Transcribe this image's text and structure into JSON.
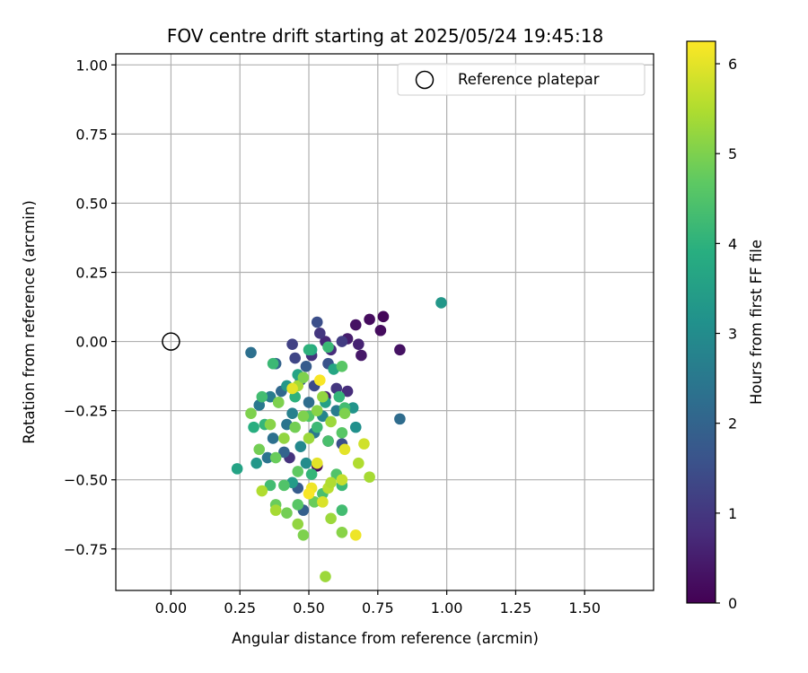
{
  "chart_data": {
    "type": "scatter",
    "title": "FOV centre drift starting at 2025/05/24 19:45:18",
    "xlabel": "Angular distance from reference (arcmin)",
    "ylabel": "Rotation from reference (arcmin)",
    "xlim": [
      -0.2,
      1.75
    ],
    "ylim": [
      -0.9,
      1.04
    ],
    "xticks": [
      "0.00",
      "0.25",
      "0.50",
      "0.75",
      "1.00",
      "1.25",
      "1.50"
    ],
    "yticks": [
      "−0.75",
      "−0.50",
      "−0.25",
      "0.00",
      "0.25",
      "0.50",
      "0.75",
      "1.00"
    ],
    "grid": true,
    "legend": {
      "placement": "top-right",
      "entries": [
        "Reference platepar"
      ]
    },
    "reference_point": {
      "x": 0.0,
      "y": 0.0
    },
    "colorbar": {
      "label": "Hours from first FF file",
      "min": 0,
      "max": 6.25,
      "ticks": [
        "0",
        "1",
        "2",
        "3",
        "4",
        "5",
        "6"
      ],
      "colormap": [
        "#440154",
        "#472d7b",
        "#3b528b",
        "#2c728e",
        "#21918c",
        "#28ae80",
        "#5ec962",
        "#addc30",
        "#fde725"
      ]
    },
    "points": [
      {
        "x": 0.77,
        "y": 0.09,
        "h": 0.1
      },
      {
        "x": 0.72,
        "y": 0.08,
        "h": 0.2
      },
      {
        "x": 0.67,
        "y": 0.06,
        "h": 0.3
      },
      {
        "x": 0.76,
        "y": 0.04,
        "h": 0.2
      },
      {
        "x": 0.69,
        "y": -0.05,
        "h": 0.4
      },
      {
        "x": 0.83,
        "y": -0.03,
        "h": 0.3
      },
      {
        "x": 0.64,
        "y": 0.01,
        "h": 0.5
      },
      {
        "x": 0.68,
        "y": -0.01,
        "h": 0.6
      },
      {
        "x": 0.56,
        "y": 0.0,
        "h": 0.7
      },
      {
        "x": 0.53,
        "y": 0.07,
        "h": 1.5
      },
      {
        "x": 0.54,
        "y": 0.03,
        "h": 1.0
      },
      {
        "x": 0.44,
        "y": -0.01,
        "h": 1.2
      },
      {
        "x": 0.51,
        "y": -0.05,
        "h": 0.9
      },
      {
        "x": 0.58,
        "y": -0.03,
        "h": 0.8
      },
      {
        "x": 0.62,
        "y": 0.0,
        "h": 1.1
      },
      {
        "x": 0.45,
        "y": -0.06,
        "h": 1.3
      },
      {
        "x": 0.57,
        "y": -0.08,
        "h": 1.6
      },
      {
        "x": 0.64,
        "y": -0.18,
        "h": 0.8
      },
      {
        "x": 0.56,
        "y": -0.2,
        "h": 0.6
      },
      {
        "x": 0.6,
        "y": -0.17,
        "h": 1.0
      },
      {
        "x": 0.52,
        "y": -0.16,
        "h": 1.4
      },
      {
        "x": 0.47,
        "y": -0.14,
        "h": 1.7
      },
      {
        "x": 0.49,
        "y": -0.09,
        "h": 1.8
      },
      {
        "x": 0.29,
        "y": -0.04,
        "h": 2.3
      },
      {
        "x": 0.38,
        "y": -0.08,
        "h": 2.0
      },
      {
        "x": 0.98,
        "y": 0.14,
        "h": 3.3
      },
      {
        "x": 0.83,
        "y": -0.28,
        "h": 2.2
      },
      {
        "x": 0.57,
        "y": -0.36,
        "h": 0.4
      },
      {
        "x": 0.53,
        "y": -0.45,
        "h": 0.2
      },
      {
        "x": 0.43,
        "y": -0.42,
        "h": 0.9
      },
      {
        "x": 0.62,
        "y": -0.37,
        "h": 1.5
      },
      {
        "x": 0.46,
        "y": -0.53,
        "h": 1.8
      },
      {
        "x": 0.48,
        "y": -0.61,
        "h": 1.9
      },
      {
        "x": 0.36,
        "y": -0.2,
        "h": 2.6
      },
      {
        "x": 0.32,
        "y": -0.23,
        "h": 2.5
      },
      {
        "x": 0.4,
        "y": -0.18,
        "h": 2.1
      },
      {
        "x": 0.42,
        "y": -0.3,
        "h": 2.4
      },
      {
        "x": 0.44,
        "y": -0.26,
        "h": 2.7
      },
      {
        "x": 0.5,
        "y": -0.22,
        "h": 2.2
      },
      {
        "x": 0.55,
        "y": -0.27,
        "h": 2.8
      },
      {
        "x": 0.6,
        "y": -0.25,
        "h": 2.6
      },
      {
        "x": 0.66,
        "y": -0.24,
        "h": 3.2
      },
      {
        "x": 0.67,
        "y": -0.31,
        "h": 3.1
      },
      {
        "x": 0.37,
        "y": -0.35,
        "h": 2.3
      },
      {
        "x": 0.35,
        "y": -0.42,
        "h": 2.4
      },
      {
        "x": 0.41,
        "y": -0.4,
        "h": 2.0
      },
      {
        "x": 0.47,
        "y": -0.38,
        "h": 2.9
      },
      {
        "x": 0.52,
        "y": -0.33,
        "h": 2.5
      },
      {
        "x": 0.49,
        "y": -0.44,
        "h": 3.0
      },
      {
        "x": 0.44,
        "y": -0.51,
        "h": 3.4
      },
      {
        "x": 0.56,
        "y": -0.22,
        "h": 3.5
      },
      {
        "x": 0.42,
        "y": -0.16,
        "h": 3.3
      },
      {
        "x": 0.46,
        "y": -0.12,
        "h": 3.6
      },
      {
        "x": 0.51,
        "y": -0.03,
        "h": 3.8
      },
      {
        "x": 0.59,
        "y": -0.1,
        "h": 3.7
      },
      {
        "x": 0.31,
        "y": -0.44,
        "h": 3.3
      },
      {
        "x": 0.24,
        "y": -0.46,
        "h": 3.6
      },
      {
        "x": 0.3,
        "y": -0.31,
        "h": 3.9
      },
      {
        "x": 0.34,
        "y": -0.3,
        "h": 4.1
      },
      {
        "x": 0.33,
        "y": -0.2,
        "h": 4.3
      },
      {
        "x": 0.37,
        "y": -0.08,
        "h": 4.2
      },
      {
        "x": 0.39,
        "y": -0.22,
        "h": 4.4
      },
      {
        "x": 0.45,
        "y": -0.2,
        "h": 4.0
      },
      {
        "x": 0.5,
        "y": -0.27,
        "h": 4.5
      },
      {
        "x": 0.53,
        "y": -0.31,
        "h": 4.2
      },
      {
        "x": 0.57,
        "y": -0.36,
        "h": 4.4
      },
      {
        "x": 0.62,
        "y": -0.33,
        "h": 4.6
      },
      {
        "x": 0.63,
        "y": -0.24,
        "h": 4.3
      },
      {
        "x": 0.61,
        "y": -0.2,
        "h": 4.1
      },
      {
        "x": 0.62,
        "y": -0.09,
        "h": 4.6
      },
      {
        "x": 0.57,
        "y": -0.02,
        "h": 4.2
      },
      {
        "x": 0.5,
        "y": -0.03,
        "h": 4.0
      },
      {
        "x": 0.36,
        "y": -0.52,
        "h": 4.3
      },
      {
        "x": 0.41,
        "y": -0.52,
        "h": 4.5
      },
      {
        "x": 0.46,
        "y": -0.47,
        "h": 4.7
      },
      {
        "x": 0.51,
        "y": -0.48,
        "h": 4.1
      },
      {
        "x": 0.55,
        "y": -0.55,
        "h": 4.4
      },
      {
        "x": 0.6,
        "y": -0.48,
        "h": 4.5
      },
      {
        "x": 0.62,
        "y": -0.52,
        "h": 4.2
      },
      {
        "x": 0.42,
        "y": -0.62,
        "h": 4.9
      },
      {
        "x": 0.38,
        "y": -0.59,
        "h": 4.8
      },
      {
        "x": 0.46,
        "y": -0.59,
        "h": 4.6
      },
      {
        "x": 0.52,
        "y": -0.58,
        "h": 4.8
      },
      {
        "x": 0.62,
        "y": -0.61,
        "h": 4.3
      },
      {
        "x": 0.29,
        "y": -0.26,
        "h": 5.0
      },
      {
        "x": 0.32,
        "y": -0.39,
        "h": 4.9
      },
      {
        "x": 0.36,
        "y": -0.3,
        "h": 5.1
      },
      {
        "x": 0.38,
        "y": -0.42,
        "h": 4.8
      },
      {
        "x": 0.41,
        "y": -0.35,
        "h": 5.2
      },
      {
        "x": 0.45,
        "y": -0.31,
        "h": 4.9
      },
      {
        "x": 0.48,
        "y": -0.27,
        "h": 5.0
      },
      {
        "x": 0.5,
        "y": -0.35,
        "h": 5.3
      },
      {
        "x": 0.53,
        "y": -0.25,
        "h": 5.1
      },
      {
        "x": 0.46,
        "y": -0.16,
        "h": 5.4
      },
      {
        "x": 0.48,
        "y": -0.13,
        "h": 5.0
      },
      {
        "x": 0.55,
        "y": -0.2,
        "h": 5.2
      },
      {
        "x": 0.58,
        "y": -0.29,
        "h": 5.3
      },
      {
        "x": 0.63,
        "y": -0.26,
        "h": 5.0
      },
      {
        "x": 0.39,
        "y": -0.22,
        "h": 5.0
      },
      {
        "x": 0.33,
        "y": -0.54,
        "h": 5.5
      },
      {
        "x": 0.38,
        "y": -0.61,
        "h": 5.4
      },
      {
        "x": 0.46,
        "y": -0.66,
        "h": 5.2
      },
      {
        "x": 0.48,
        "y": -0.7,
        "h": 5.0
      },
      {
        "x": 0.58,
        "y": -0.64,
        "h": 5.3
      },
      {
        "x": 0.62,
        "y": -0.69,
        "h": 5.1
      },
      {
        "x": 0.57,
        "y": -0.53,
        "h": 5.6
      },
      {
        "x": 0.58,
        "y": -0.51,
        "h": 5.5
      },
      {
        "x": 0.62,
        "y": -0.5,
        "h": 5.7
      },
      {
        "x": 0.68,
        "y": -0.44,
        "h": 5.5
      },
      {
        "x": 0.72,
        "y": -0.49,
        "h": 5.4
      },
      {
        "x": 0.56,
        "y": -0.85,
        "h": 5.3
      },
      {
        "x": 0.51,
        "y": -0.53,
        "h": 6.1
      },
      {
        "x": 0.53,
        "y": -0.44,
        "h": 6.0
      },
      {
        "x": 0.55,
        "y": -0.58,
        "h": 5.9
      },
      {
        "x": 0.63,
        "y": -0.39,
        "h": 6.0
      },
      {
        "x": 0.7,
        "y": -0.37,
        "h": 5.8
      },
      {
        "x": 0.67,
        "y": -0.7,
        "h": 6.1
      },
      {
        "x": 0.44,
        "y": -0.17,
        "h": 6.0
      },
      {
        "x": 0.54,
        "y": -0.14,
        "h": 6.2
      },
      {
        "x": 0.5,
        "y": -0.55,
        "h": 6.2
      }
    ]
  }
}
